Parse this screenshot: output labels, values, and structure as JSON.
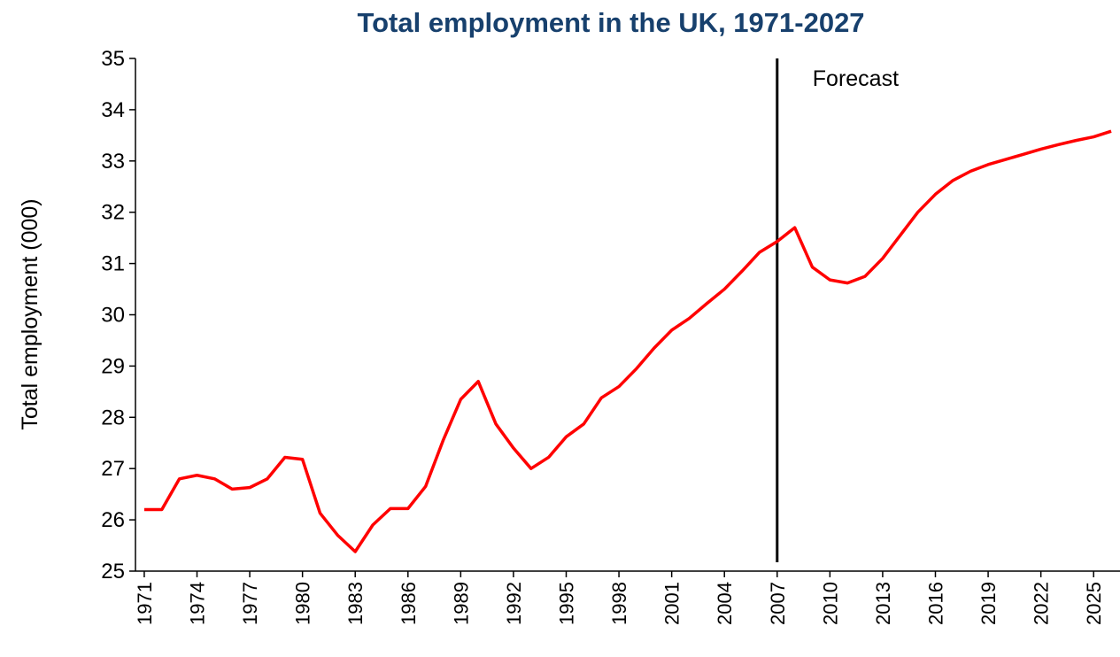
{
  "chart_data": {
    "type": "line",
    "title": "Total employment in the UK, 1971-2027",
    "y_label": "Total employment (000)",
    "x": [
      1971,
      1972,
      1973,
      1974,
      1975,
      1976,
      1977,
      1978,
      1979,
      1980,
      1981,
      1982,
      1983,
      1984,
      1985,
      1986,
      1987,
      1988,
      1989,
      1990,
      1991,
      1992,
      1993,
      1994,
      1995,
      1996,
      1997,
      1998,
      1999,
      2000,
      2001,
      2002,
      2003,
      2004,
      2005,
      2006,
      2007,
      2008,
      2009,
      2010,
      2011,
      2012,
      2013,
      2014,
      2015,
      2016,
      2017,
      2018,
      2019,
      2020,
      2021,
      2022,
      2023,
      2024,
      2025,
      2026
    ],
    "series": [
      {
        "name": "Total employment",
        "color": "#ff0000",
        "values": [
          26.2,
          26.2,
          26.8,
          26.87,
          26.8,
          26.6,
          26.63,
          26.8,
          27.22,
          27.18,
          26.13,
          25.7,
          25.38,
          25.9,
          26.22,
          26.22,
          26.65,
          27.55,
          28.35,
          28.7,
          27.87,
          27.4,
          27.0,
          27.22,
          27.62,
          27.87,
          28.38,
          28.6,
          28.95,
          29.35,
          29.7,
          29.93,
          30.22,
          30.5,
          30.85,
          31.22,
          31.43,
          31.7,
          30.93,
          30.68,
          30.62,
          30.75,
          31.1,
          31.55,
          32.0,
          32.35,
          32.62,
          32.8,
          32.93,
          33.03,
          33.13,
          33.23,
          33.32,
          33.4,
          33.47,
          33.58
        ]
      }
    ],
    "xlim": [
      1970.5,
      2026.5
    ],
    "xticks": [
      1971,
      1974,
      1977,
      1980,
      1983,
      1986,
      1989,
      1992,
      1995,
      1998,
      2001,
      2004,
      2007,
      2010,
      2013,
      2016,
      2019,
      2022,
      2025
    ],
    "ylim": [
      25,
      35
    ],
    "yticks": [
      25,
      26,
      27,
      28,
      29,
      30,
      31,
      32,
      33,
      34,
      35
    ],
    "annotations": [
      {
        "text": "Forecast",
        "x": 2007
      }
    ]
  }
}
